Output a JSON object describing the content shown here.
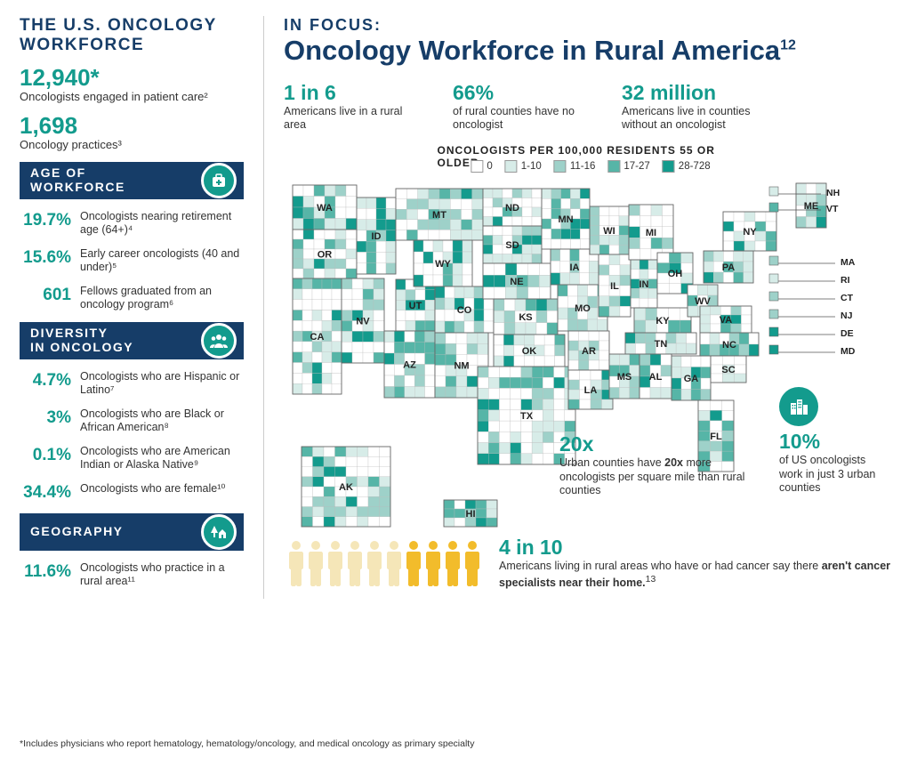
{
  "colors": {
    "navy": "#163d68",
    "teal": "#139b8d",
    "text": "#333333",
    "bg": "#ffffff",
    "map_bins": [
      "#ffffff",
      "#d7ece8",
      "#9ed1c9",
      "#56b5a7",
      "#139b8d"
    ],
    "person_light": "#f5e6b8",
    "person_dark": "#f2bc2b"
  },
  "left": {
    "title": "THE U.S. ONCOLOGY WORKFORCE",
    "stats": [
      {
        "value": "12,940*",
        "label": "Oncologists engaged in patient care²"
      },
      {
        "value": "1,698",
        "label": "Oncology practices³"
      }
    ],
    "sections": [
      {
        "bar": "AGE OF\nWORKFORCE",
        "icon": "medical-bag-icon",
        "rows": [
          {
            "v": "19.7%",
            "d": "Oncologists nearing retirement age (64+)⁴"
          },
          {
            "v": "15.6%",
            "d": "Early career oncologists (40 and under)⁵"
          },
          {
            "v": "601",
            "d": "Fellows graduated from an oncology program⁶"
          }
        ]
      },
      {
        "bar": "DIVERSITY\nIN ONCOLOGY",
        "icon": "people-icon",
        "rows": [
          {
            "v": "4.7%",
            "d": "Oncologists who are Hispanic or Latino⁷"
          },
          {
            "v": "3%",
            "d": "Oncologists who are Black or African American⁸"
          },
          {
            "v": "0.1%",
            "d": "Oncologists who are American Indian or Alaska Native⁹"
          },
          {
            "v": "34.4%",
            "d": "Oncologists who are female¹⁰"
          }
        ]
      },
      {
        "bar": "GEOGRAPHY",
        "icon": "tree-house-icon",
        "rows": [
          {
            "v": "11.6%",
            "d": "Oncologists who practice in a rural area¹¹"
          }
        ]
      }
    ]
  },
  "focus": {
    "overline": "IN FOCUS:",
    "title": "Oncology Workforce in Rural America",
    "title_sup": "12",
    "topstats": [
      {
        "num": "1 in 6",
        "label": "Americans live in a rural area"
      },
      {
        "num": "66%",
        "label": "of rural counties have no oncologist"
      },
      {
        "num": "32 million",
        "label": "Americans live in counties without an oncologist"
      }
    ]
  },
  "map": {
    "type": "choropleth",
    "legend_title": "ONCOLOGISTS PER 100,000 RESIDENTS 55 OR OLDER",
    "legend": [
      {
        "label": "0",
        "color": "#ffffff"
      },
      {
        "label": "1-10",
        "color": "#d7ece8"
      },
      {
        "label": "11-16",
        "color": "#9ed1c9"
      },
      {
        "label": "17-27",
        "color": "#56b5a7"
      },
      {
        "label": "28-728",
        "color": "#139b8d"
      }
    ],
    "state_labels": [
      "WA",
      "OR",
      "CA",
      "NV",
      "ID",
      "UT",
      "AZ",
      "MT",
      "WY",
      "CO",
      "NM",
      "ND",
      "SD",
      "NE",
      "KS",
      "OK",
      "TX",
      "MN",
      "IA",
      "MO",
      "AR",
      "LA",
      "WI",
      "IL",
      "MI",
      "IN",
      "OH",
      "KY",
      "TN",
      "MS",
      "AL",
      "GA",
      "FL",
      "WV",
      "VA",
      "NC",
      "SC",
      "PA",
      "NY",
      "ME",
      "NH",
      "VT",
      "MA",
      "RI",
      "CT",
      "NJ",
      "DE",
      "MD",
      "AK",
      "HI"
    ]
  },
  "callouts": {
    "twentyx": {
      "num": "20x",
      "text": "Urban counties have 20x more oncologists per square mile than rural counties"
    },
    "tenpct": {
      "num": "10%",
      "text": "of US oncologists work in just 3 urban counties"
    },
    "fourten": {
      "num": "4 in 10",
      "text_a": "Americans living in rural areas who have or had cancer say there ",
      "bold": "aren't cancer specialists near their home.",
      "sup": "13"
    }
  },
  "pictogram": {
    "total": 10,
    "highlighted": 4,
    "light_color": "#f5e6b8",
    "dark_color": "#f2bc2b"
  },
  "footnote": "*Includes physicians who report hematology, hematology/oncology, and medical oncology as primary specialty"
}
